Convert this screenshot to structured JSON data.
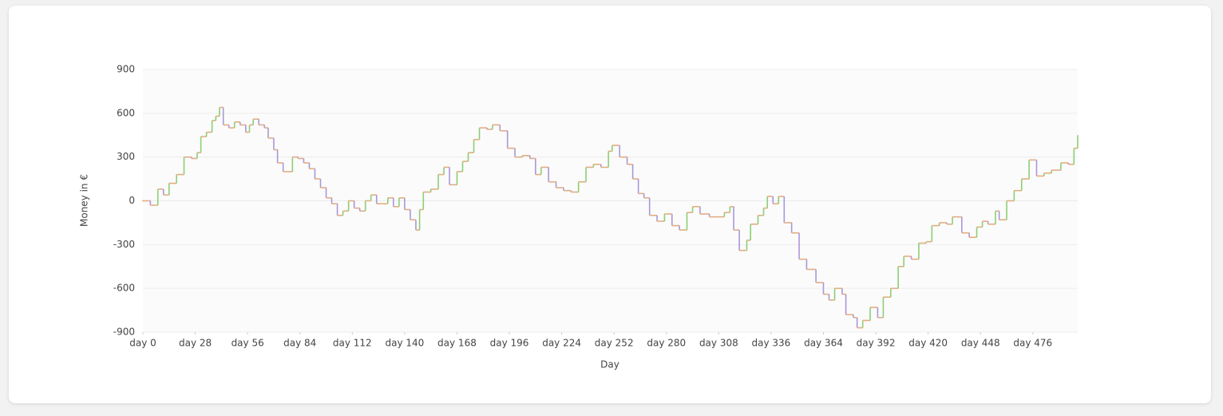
{
  "chart_data": {
    "type": "step-line",
    "x_label": "Day",
    "y_label": "Money in €",
    "x": [
      0,
      4,
      8,
      11,
      14,
      18,
      22,
      26,
      29,
      31,
      34,
      37,
      39,
      41,
      43,
      46,
      49,
      52,
      55,
      57,
      59,
      62,
      65,
      67,
      70,
      72,
      75,
      77,
      80,
      83,
      86,
      89,
      92,
      95,
      98,
      101,
      104,
      107,
      110,
      113,
      116,
      119,
      122,
      125,
      128,
      131,
      134,
      137,
      140,
      143,
      146,
      148,
      150,
      154,
      158,
      161,
      164,
      168,
      171,
      174,
      177,
      180,
      184,
      187,
      191,
      195,
      199,
      203,
      207,
      210,
      213,
      217,
      221,
      225,
      229,
      233,
      237,
      241,
      245,
      249,
      251,
      255,
      259,
      262,
      265,
      268,
      271,
      275,
      279,
      283,
      287,
      291,
      294,
      298,
      303,
      307,
      311,
      314,
      316,
      319,
      323,
      325,
      329,
      332,
      334,
      337,
      340,
      343,
      347,
      351,
      355,
      360,
      364,
      367,
      370,
      374,
      376,
      380,
      382,
      385,
      389,
      393,
      396,
      400,
      404,
      407,
      411,
      415,
      419,
      422,
      426,
      430,
      433,
      438,
      442,
      446,
      449,
      452,
      456,
      458,
      462,
      466,
      470,
      474,
      478,
      482,
      486,
      491,
      495,
      498,
      500
    ],
    "values": [
      0,
      -30,
      80,
      40,
      120,
      180,
      300,
      290,
      330,
      440,
      470,
      550,
      580,
      640,
      520,
      500,
      540,
      520,
      470,
      520,
      560,
      520,
      500,
      430,
      350,
      260,
      200,
      200,
      300,
      290,
      260,
      220,
      150,
      90,
      20,
      -20,
      -100,
      -70,
      0,
      -50,
      -70,
      0,
      40,
      -20,
      -20,
      20,
      -40,
      20,
      -60,
      -130,
      -200,
      -60,
      60,
      80,
      180,
      230,
      110,
      200,
      270,
      330,
      420,
      500,
      490,
      520,
      480,
      360,
      300,
      310,
      290,
      180,
      230,
      130,
      90,
      70,
      60,
      130,
      230,
      250,
      230,
      340,
      380,
      300,
      250,
      150,
      50,
      20,
      -100,
      -140,
      -90,
      -170,
      -200,
      -80,
      -40,
      -90,
      -110,
      -110,
      -80,
      -40,
      -200,
      -340,
      -270,
      -160,
      -100,
      -50,
      30,
      -20,
      30,
      -150,
      -220,
      -400,
      -470,
      -560,
      -640,
      -680,
      -600,
      -640,
      -780,
      -800,
      -870,
      -820,
      -730,
      -800,
      -660,
      -600,
      -450,
      -380,
      -400,
      -290,
      -280,
      -170,
      -150,
      -160,
      -110,
      -220,
      -250,
      -180,
      -140,
      -160,
      -70,
      -130,
      0,
      70,
      150,
      280,
      170,
      190,
      210,
      260,
      250,
      360,
      450
    ],
    "step_colors": {
      "rise": "#8ccf74",
      "fall": "#ab97d8",
      "hold": "#e3ad82"
    },
    "xlim": [
      0,
      500
    ],
    "xticks": [
      {
        "value": 0,
        "label": "day 0"
      },
      {
        "value": 28,
        "label": "day 28"
      },
      {
        "value": 56,
        "label": "day 56"
      },
      {
        "value": 84,
        "label": "day 84"
      },
      {
        "value": 112,
        "label": "day 112"
      },
      {
        "value": 140,
        "label": "day 140"
      },
      {
        "value": 168,
        "label": "day 168"
      },
      {
        "value": 196,
        "label": "day 196"
      },
      {
        "value": 224,
        "label": "day 224"
      },
      {
        "value": 252,
        "label": "day 252"
      },
      {
        "value": 280,
        "label": "day 280"
      },
      {
        "value": 308,
        "label": "day 308"
      },
      {
        "value": 336,
        "label": "day 336"
      },
      {
        "value": 364,
        "label": "day 364"
      },
      {
        "value": 392,
        "label": "day 392"
      },
      {
        "value": 420,
        "label": "day 420"
      },
      {
        "value": 448,
        "label": "day 448"
      },
      {
        "value": 476,
        "label": "day 476"
      }
    ],
    "ylim": [
      -900,
      900
    ],
    "yticks": [
      900,
      600,
      300,
      0,
      -300,
      -600,
      -900
    ],
    "grid": true
  }
}
